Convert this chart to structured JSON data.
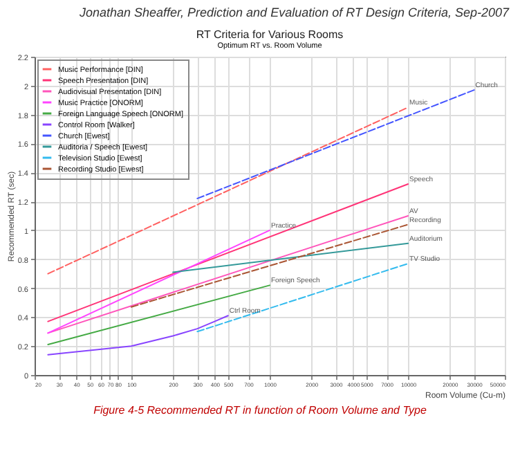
{
  "chart_data": {
    "type": "line",
    "title": "RT Criteria for Various Rooms",
    "subtitle": "Optimum RT vs. Room Volume",
    "xlabel": "Room Volume (Cu-m)",
    "ylabel": "Recommended RT (sec)",
    "log": "x",
    "grid": true,
    "legend": "top left",
    "xlim": [
      20,
      50000
    ],
    "xticks": [
      20,
      30,
      40,
      50,
      60,
      70,
      80,
      100,
      200,
      300,
      400,
      500,
      700,
      1000,
      2000,
      3000,
      4000,
      5000,
      7000,
      10000,
      20000,
      30000,
      50000
    ],
    "ylim": [
      0,
      2.2
    ],
    "yticks": [
      0,
      0.2,
      0.4,
      0.6,
      0.8,
      1,
      1.2,
      1.4,
      1.6,
      1.8,
      2,
      2.2
    ],
    "series": [
      {
        "name": "Music Performance [DIN]",
        "color": "#ff6060",
        "line_style": "dashed",
        "x": [
          25,
          10000
        ],
        "values": [
          0.7,
          1.85
        ]
      },
      {
        "name": "Speech Presentation [DIN]",
        "color": "#ff3377",
        "line_style": "solid",
        "x": [
          25,
          10000
        ],
        "values": [
          0.37,
          1.32
        ]
      },
      {
        "name": "Audiovisual Presentation [DIN]",
        "color": "#ff55bb",
        "line_style": "solid",
        "x": [
          25,
          10000
        ],
        "values": [
          0.29,
          1.1
        ]
      },
      {
        "name": "Music Practice [ONORM]",
        "color": "#ff44ff",
        "line_style": "solid",
        "x": [
          25,
          1000
        ],
        "values": [
          0.29,
          1.0
        ]
      },
      {
        "name": "Foreign Language Speech [ONORM]",
        "color": "#44aa44",
        "line_style": "solid",
        "x": [
          25,
          1000
        ],
        "values": [
          0.21,
          0.62
        ]
      },
      {
        "name": "Control Room [Walker]",
        "color": "#8844ff",
        "line_style": "solid",
        "x": [
          25,
          50,
          100,
          200,
          300,
          400,
          500
        ],
        "values": [
          0.14,
          0.17,
          0.2,
          0.27,
          0.32,
          0.37,
          0.41
        ]
      },
      {
        "name": "Church [Ewest]",
        "color": "#4455ff",
        "line_style": "dashed",
        "x": [
          300,
          30000
        ],
        "values": [
          1.22,
          1.97
        ]
      },
      {
        "name": "Auditoria / Speech [Ewest]",
        "color": "#339999",
        "line_style": "solid",
        "x": [
          200,
          10000
        ],
        "values": [
          0.71,
          0.91
        ]
      },
      {
        "name": "Television Studio [Ewest]",
        "color": "#33bbee",
        "line_style": "dashed",
        "x": [
          300,
          10000
        ],
        "values": [
          0.3,
          0.77
        ]
      },
      {
        "name": "Recording Studio [Ewest]",
        "color": "#aa5533",
        "line_style": "dashed",
        "x": [
          100,
          10000
        ],
        "values": [
          0.47,
          1.04
        ]
      }
    ],
    "annotations": [
      "Jonathan Sheaffer, Prediction and Evaluation of RT Design Criteria, Sep-2007",
      {
        "text": "Music",
        "x": 10000,
        "y": 1.85
      },
      {
        "text": "Church",
        "x": 30000,
        "y": 1.97
      },
      {
        "text": "Speech",
        "x": 10000,
        "y": 1.32
      },
      {
        "text": "AV",
        "x": 10000,
        "y": 1.1
      },
      {
        "text": "Recording",
        "x": 10000,
        "y": 1.04
      },
      {
        "text": "Auditorium",
        "x": 10000,
        "y": 0.91
      },
      {
        "text": "TV Studio",
        "x": 10000,
        "y": 0.77
      },
      {
        "text": "Practice",
        "x": 1000,
        "y": 1.0
      },
      {
        "text": "Foreign Speech",
        "x": 1000,
        "y": 0.62
      },
      {
        "text": "Ctrl Room",
        "x": 500,
        "y": 0.41
      },
      "Figure 4-5 Recommended RT in function of Room Volume and Type"
    ]
  }
}
